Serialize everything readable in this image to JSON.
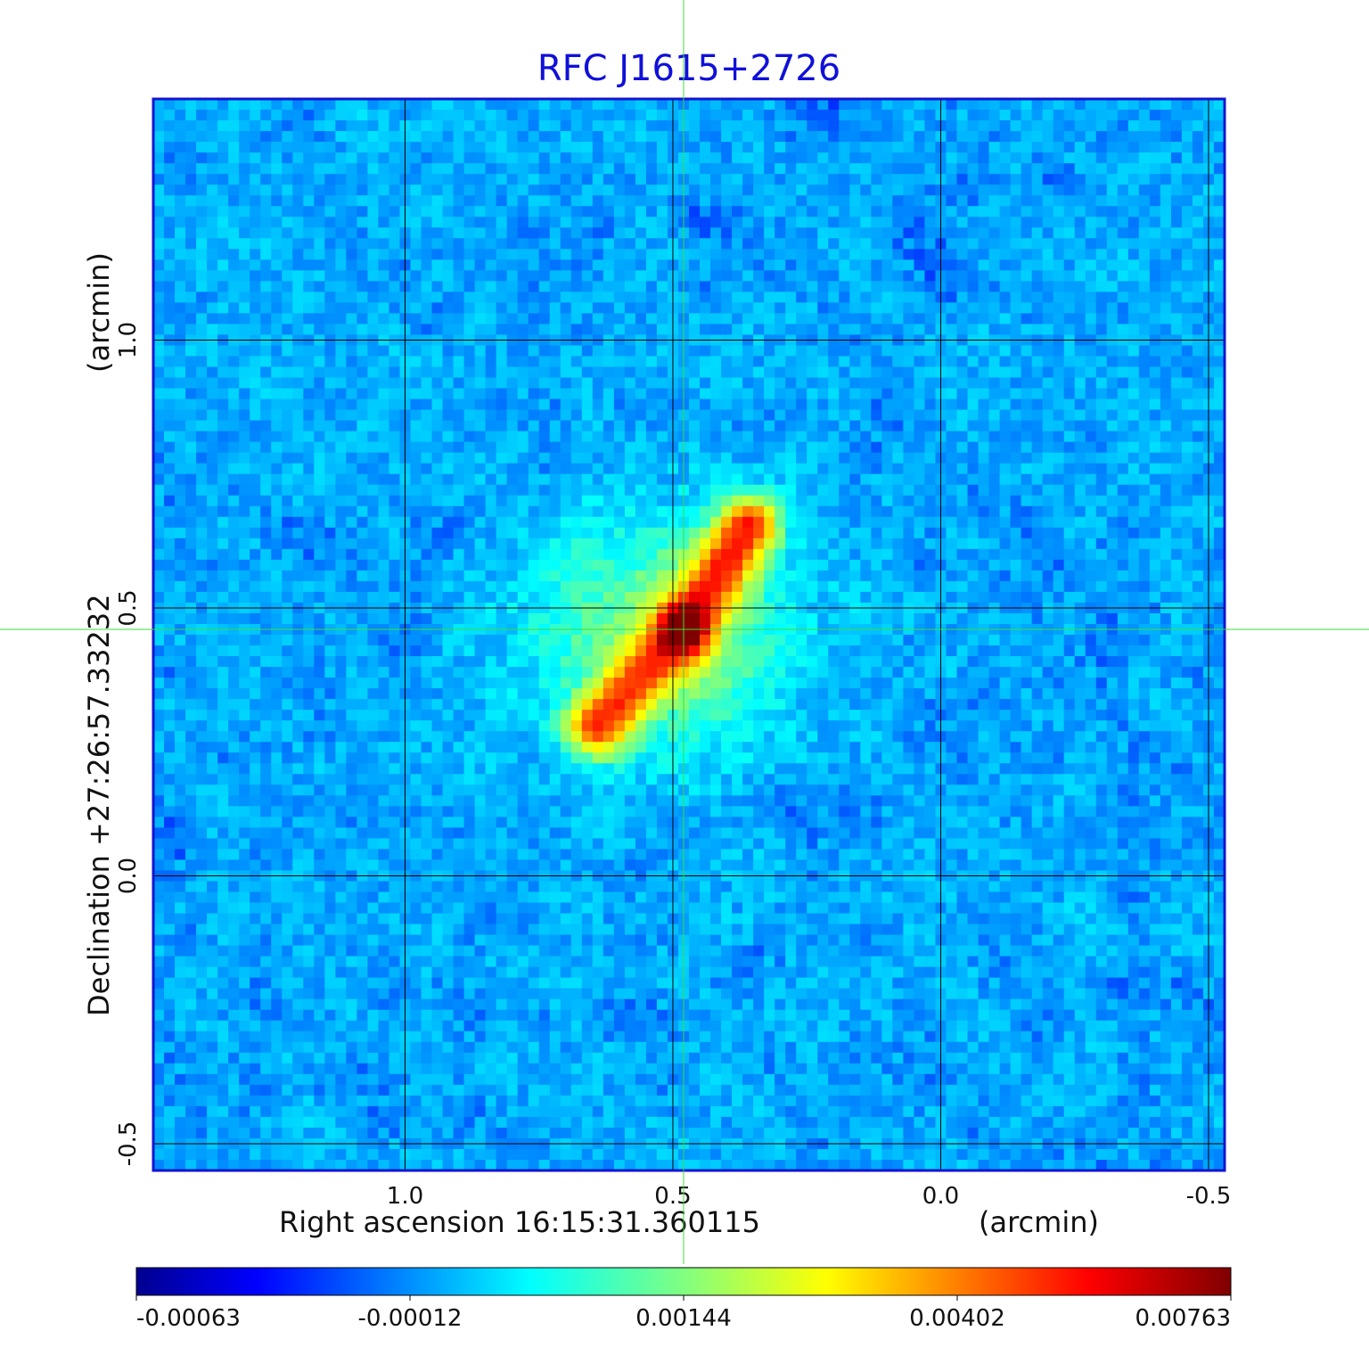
{
  "chart_data": {
    "type": "heatmap",
    "title": "RFC J1615+2726",
    "xlabel": "Right ascension  16:15:31.360115",
    "x_unit_label": "(arcmin)",
    "ylabel": "Declination  +27:26:57.33232",
    "y_unit_label": "(arcmin)",
    "x_ticks": [
      1.0,
      0.5,
      0.0,
      -0.5
    ],
    "x_tick_labels": [
      "1.0",
      "0.5",
      "0.0",
      "-0.5"
    ],
    "y_ticks": [
      -0.5,
      0.0,
      0.5,
      1.0
    ],
    "y_tick_labels": [
      "-0.5",
      "0.0",
      "0.5",
      "1.0"
    ],
    "xlim": [
      1.47,
      -0.53
    ],
    "ylim": [
      -0.55,
      1.45
    ],
    "x_reversed": true,
    "grid": true,
    "crosshair": {
      "x": 0.48,
      "y": 0.46
    },
    "colorbar": {
      "ticks": [
        -0.00063,
        -0.00012,
        0.00144,
        0.00402,
        0.00763
      ],
      "tick_labels": [
        "-0.00063",
        "-0.00012",
        "0.00144",
        "0.00402",
        "0.00763"
      ],
      "colormap": "jet",
      "range": [
        -0.00063,
        0.00763
      ]
    },
    "features": {
      "core": {
        "x": 0.48,
        "y": 0.46,
        "value": 0.0076
      },
      "jets": [
        {
          "from": [
            0.48,
            0.46
          ],
          "to": [
            0.36,
            0.65
          ],
          "peak": 0.0052
        },
        {
          "from": [
            0.48,
            0.46
          ],
          "to": [
            0.64,
            0.28
          ],
          "peak": 0.0045
        }
      ],
      "diffuse_glow": [
        {
          "x": 0.52,
          "y": 0.45,
          "value": 0.0015
        }
      ],
      "noise_level": [
        -0.00063,
        0.0009
      ]
    }
  },
  "colors": {
    "title": "#1010d8",
    "frame": "#1414d0",
    "grid": "#000000",
    "crosshair": "#3ddc3d"
  }
}
